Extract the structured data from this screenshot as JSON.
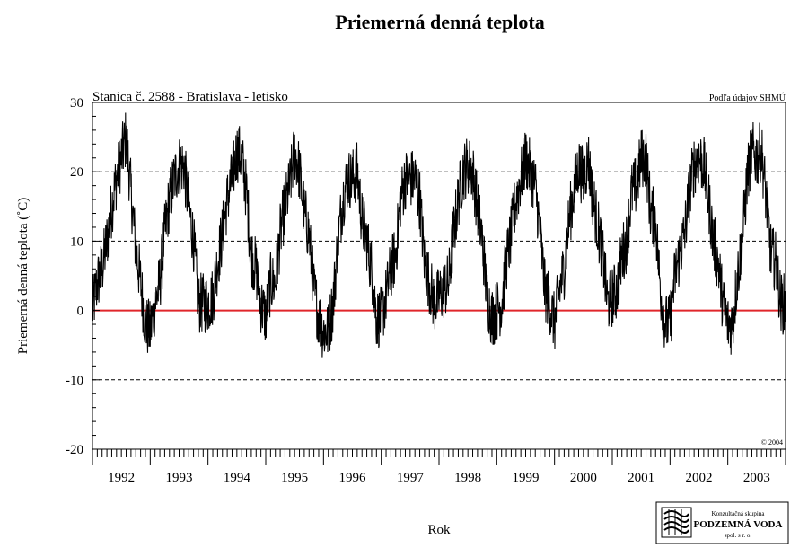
{
  "chart_data": {
    "type": "line",
    "title": "Priemerná denná teplota",
    "subtitle": "Stanica č. 2588 - Bratislava - letisko",
    "source_note": "Podľa údajov SHMÚ",
    "copyright": "© 2004",
    "xlabel": "Rok",
    "ylabel": "Priemerná denná teplota (˚C)",
    "ylim": [
      -20,
      30
    ],
    "yticks": [
      30,
      20,
      10,
      0,
      -10,
      -20
    ],
    "y_minor_step": 2,
    "grid_lines_dashed": [
      20,
      10,
      -10
    ],
    "reference_line": {
      "y": 0,
      "color": "#e0262b"
    },
    "years": [
      "1992",
      "1993",
      "1994",
      "1995",
      "1996",
      "1997",
      "1998",
      "1999",
      "2000",
      "2001",
      "2002",
      "2003"
    ],
    "xlim_months": [
      0,
      144
    ],
    "series": [
      {
        "color": "#000000",
        "description_points": "approx. daily-mean temperature, monthly resolution",
        "monthly_values": [
          0,
          4,
          6,
          10,
          15,
          19,
          22,
          25,
          17,
          9,
          4,
          -2,
          -3,
          1,
          4,
          11,
          16,
          19,
          21,
          21,
          15,
          10,
          1,
          1,
          1,
          2,
          7,
          11,
          16,
          19,
          23,
          22,
          17,
          8,
          6,
          1,
          -1,
          4,
          4,
          11,
          15,
          18,
          23,
          20,
          14,
          11,
          3,
          -1,
          -3,
          -3,
          1,
          10,
          16,
          19,
          19,
          20,
          13,
          10,
          6,
          -1,
          -1,
          2,
          6,
          8,
          16,
          19,
          19,
          19,
          16,
          7,
          4,
          1,
          2,
          3,
          4,
          11,
          16,
          20,
          21,
          20,
          15,
          10,
          2,
          -1,
          0,
          1,
          7,
          11,
          16,
          19,
          22,
          20,
          18,
          11,
          3,
          1,
          -2,
          3,
          6,
          13,
          17,
          21,
          19,
          22,
          16,
          12,
          8,
          1,
          2,
          3,
          8,
          10,
          17,
          18,
          22,
          22,
          14,
          13,
          3,
          -2,
          -2,
          5,
          8,
          11,
          17,
          21,
          22,
          21,
          16,
          10,
          7,
          1,
          -2,
          -2,
          5,
          10,
          19,
          23,
          22,
          23,
          16,
          8,
          7,
          1
        ]
      }
    ]
  },
  "logo": {
    "line1": "Konzultačná skupina",
    "line2": "PODZEMNÁ VODA",
    "line3": "spol. s r. o."
  }
}
